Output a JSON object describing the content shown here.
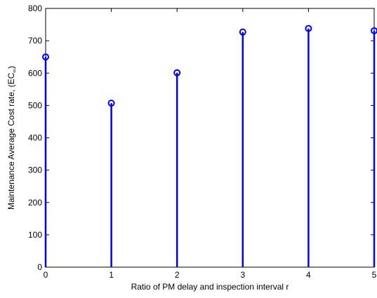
{
  "chart_data": {
    "type": "stem",
    "x": [
      0,
      1,
      2,
      3,
      4,
      5
    ],
    "values": [
      650,
      507,
      601,
      727,
      738,
      731
    ],
    "xlabel": "Ratio of PM delay and inspection interval r",
    "ylabel": "Maintenance Average Cost rate, (EC",
    "ylabel_subscript": "∞",
    "ylabel_suffix": ")",
    "xlim": [
      0,
      5
    ],
    "ylim": [
      0,
      800
    ],
    "xticks": [
      0,
      1,
      2,
      3,
      4,
      5
    ],
    "yticks": [
      0,
      100,
      200,
      300,
      400,
      500,
      600,
      700,
      800
    ],
    "grid": false,
    "series_color": "#0000ff"
  }
}
